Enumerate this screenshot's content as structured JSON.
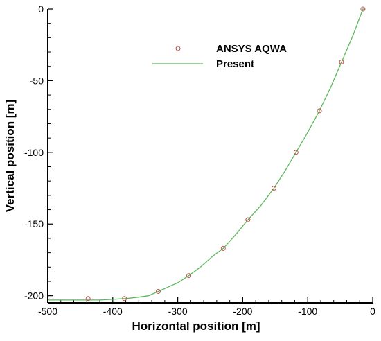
{
  "chart_data": {
    "type": "scatter",
    "xlabel": "Horizontal position [m]",
    "ylabel": "Vertical position [m]",
    "xlim": [
      -500,
      0
    ],
    "ylim": [
      -205,
      0
    ],
    "xticks": [
      -500,
      -400,
      -300,
      -200,
      -100,
      0
    ],
    "yticks": [
      0,
      -50,
      -100,
      -150,
      -200
    ],
    "grid": false,
    "legend_position": "top-center",
    "series": [
      {
        "name": "ANSYS AQWA",
        "style": "markers",
        "marker": "open-circle",
        "color": "#c0504d",
        "x": [
          -15,
          -48,
          -82,
          -118,
          -152,
          -192,
          -230,
          -283,
          -330,
          -382,
          -438
        ],
        "y": [
          0,
          -37,
          -71,
          -100,
          -125,
          -147,
          -167,
          -186,
          -197,
          -202,
          -202
        ]
      },
      {
        "name": "Present",
        "style": "line",
        "color": "#5cb85c",
        "x": [
          -500,
          -420,
          -380,
          -360,
          -345,
          -330,
          -315,
          -300,
          -283,
          -265,
          -245,
          -230,
          -210,
          -192,
          -172,
          -152,
          -135,
          -118,
          -100,
          -82,
          -65,
          -48,
          -30,
          -15,
          -12
        ],
        "y": [
          -203,
          -203,
          -202,
          -201,
          -200,
          -197,
          -194,
          -191,
          -186,
          -180,
          -172,
          -167,
          -157,
          -147,
          -137,
          -125,
          -113,
          -100,
          -86,
          -71,
          -55,
          -37,
          -18,
          0,
          0
        ]
      }
    ]
  }
}
